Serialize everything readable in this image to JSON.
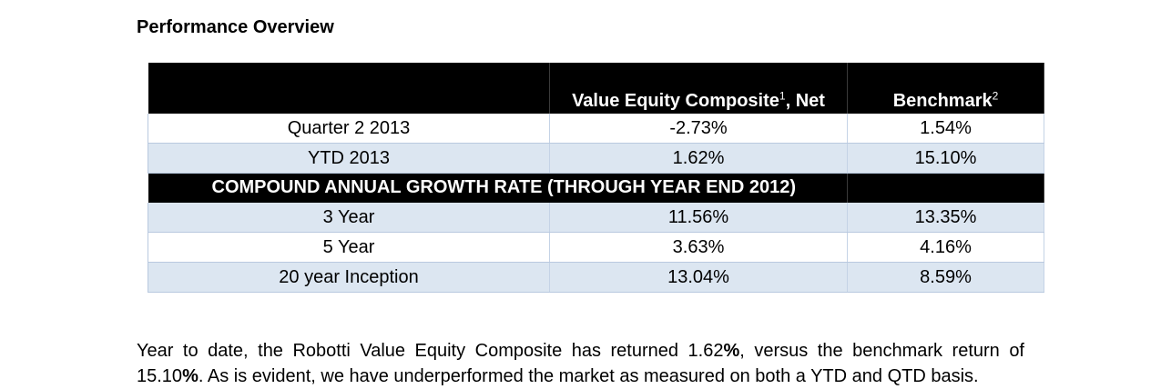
{
  "heading": "Performance Overview",
  "table": {
    "header": {
      "period": "",
      "composite_label": "Value Equity Composite",
      "composite_sup": "1",
      "composite_suffix": ", Net",
      "benchmark_label": "Benchmark",
      "benchmark_sup": "2"
    },
    "rows": [
      {
        "period": "Quarter 2 2013",
        "composite": "-2.73%",
        "benchmark": "1.54%"
      },
      {
        "period": "YTD 2013",
        "composite": "1.62%",
        "benchmark": "15.10%"
      }
    ],
    "section_title": "COMPOUND ANNUAL GROWTH RATE (THROUGH YEAR END 2012)",
    "cagr_rows": [
      {
        "period": "3 Year",
        "composite": "11.56%",
        "benchmark": "13.35%"
      },
      {
        "period": "5 Year",
        "composite": "3.63%",
        "benchmark": "4.16%"
      },
      {
        "period": "20 year Inception",
        "composite": "13.04%",
        "benchmark": "8.59%"
      }
    ]
  },
  "paragraph": {
    "line1_a": "Year to date, the Robotti Value Equity Composite has returned 1.62",
    "line1_pct": "%",
    "line1_b": ", versus the benchmark return of",
    "line2_a": "15.10",
    "line2_pct": "%",
    "line2_b": ". As is evident, we have underperformed the market as measured on both a YTD and QTD basis."
  }
}
